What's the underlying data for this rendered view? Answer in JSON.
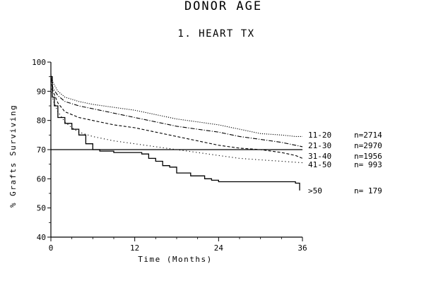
{
  "chart_data": {
    "type": "line",
    "title": "DONOR AGE",
    "subtitle": "1. HEART TX",
    "xlabel": "Time (Months)",
    "ylabel": "% Grafts Surviving",
    "xlim": [
      0,
      36
    ],
    "ylim": [
      40,
      100
    ],
    "xticks": [
      0,
      12,
      24,
      36
    ],
    "yticks": [
      40,
      50,
      60,
      70,
      80,
      90,
      100
    ],
    "reference_line": 70,
    "grid": false,
    "legend_placement": "right",
    "series": [
      {
        "name": "11-20",
        "n": "n=2714",
        "style": "dotted",
        "x": [
          0,
          0.3,
          1,
          2,
          4,
          6,
          9,
          12,
          15,
          18,
          21,
          24,
          27,
          30,
          33,
          35,
          36
        ],
        "values": [
          96,
          93,
          90,
          88,
          86.5,
          85.5,
          84.5,
          83.5,
          82,
          80.5,
          79.5,
          78.5,
          77,
          75.5,
          75,
          74.5,
          74.5
        ]
      },
      {
        "name": "21-30",
        "n": "n=2970",
        "style": "dashdot",
        "x": [
          0,
          0.3,
          1,
          2,
          4,
          6,
          9,
          12,
          15,
          18,
          21,
          24,
          27,
          30,
          33,
          35,
          36
        ],
        "values": [
          95,
          91,
          88.5,
          86.5,
          85,
          84,
          82.5,
          81,
          79.5,
          78,
          77,
          76,
          74.5,
          73.5,
          72.5,
          71.5,
          71
        ]
      },
      {
        "name": "31-40",
        "n": "n=1956",
        "style": "dashed",
        "x": [
          0,
          0.3,
          1,
          2,
          4,
          6,
          9,
          12,
          15,
          18,
          21,
          24,
          27,
          30,
          33,
          35,
          36
        ],
        "values": [
          94,
          90,
          86,
          83,
          81,
          80,
          78.5,
          77.5,
          76,
          74.5,
          73,
          71.5,
          70.5,
          70,
          69,
          68,
          67
        ]
      },
      {
        "name": "41-50",
        "n": "n= 993",
        "style": "sparse-dotted",
        "x": [
          0,
          0.3,
          1,
          2,
          3,
          4,
          6,
          9,
          12,
          15,
          18,
          21,
          24,
          27,
          30,
          33,
          36
        ],
        "values": [
          92,
          87,
          83,
          79.5,
          77.5,
          76,
          74.5,
          73,
          72,
          71,
          70,
          69,
          68,
          67,
          66.5,
          66,
          65.5
        ]
      },
      {
        "name": ">50",
        "n": "n= 179",
        "style": "solid-step",
        "x": [
          0,
          0.2,
          0.5,
          1,
          2,
          3,
          4,
          5,
          6,
          7,
          9,
          11,
          13,
          14,
          15,
          16,
          17,
          18,
          20,
          22,
          23,
          24,
          26,
          28,
          30,
          32,
          34,
          35,
          35.6
        ],
        "values": [
          95,
          88,
          85,
          81,
          79,
          77,
          75,
          72,
          70,
          69.5,
          69,
          69,
          68.5,
          67,
          66,
          64.5,
          64,
          62,
          61,
          60,
          59.5,
          59,
          59,
          59,
          59,
          59,
          59,
          58.5,
          56
        ]
      }
    ]
  }
}
